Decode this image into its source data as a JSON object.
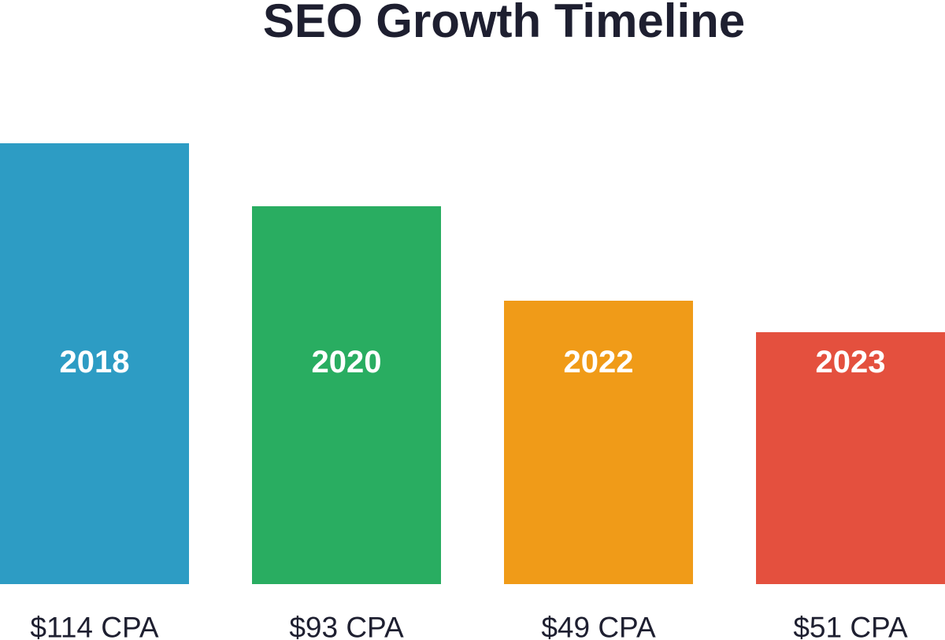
{
  "chart_data": {
    "type": "bar",
    "title": "SEO Growth Timeline",
    "categories": [
      "2018",
      "2020",
      "2022",
      "2023"
    ],
    "values": [
      140,
      120,
      90,
      80
    ],
    "value_labels": [
      "$114 CPA",
      "$93 CPA",
      "$49 CPA",
      "$51 CPA"
    ],
    "colors": [
      "#2d9cc4",
      "#29ad61",
      "#f09b18",
      "#e4503e"
    ],
    "ylim": [
      0,
      140
    ],
    "grid": false,
    "legend": "none"
  }
}
